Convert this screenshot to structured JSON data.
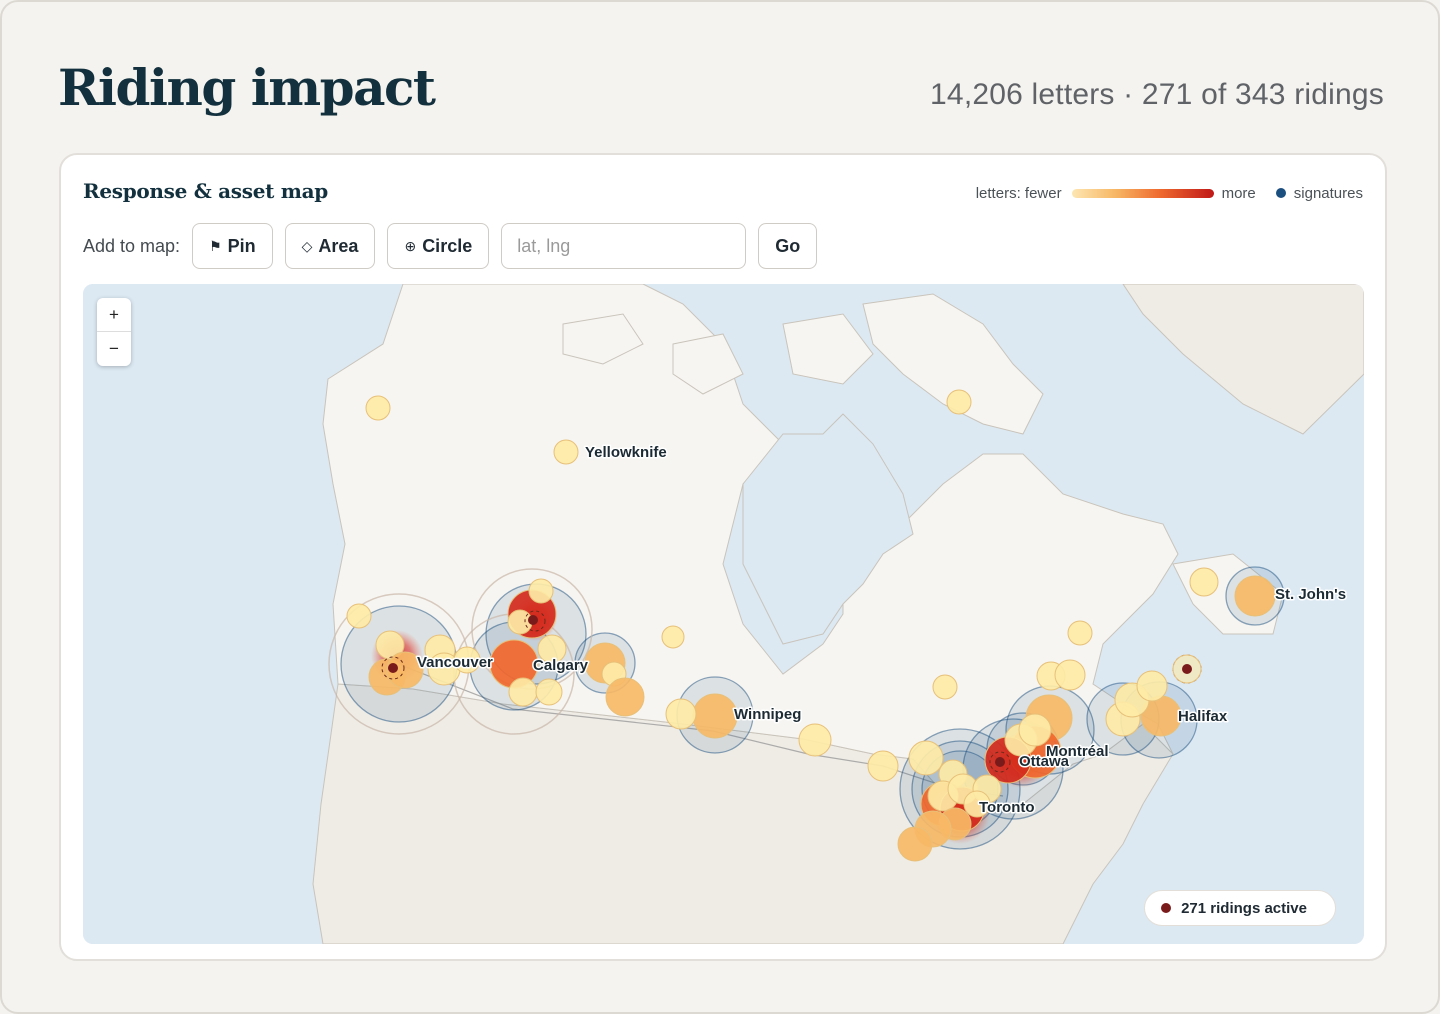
{
  "header": {
    "title": "Riding impact",
    "summary": "14,206 letters · 271 of 343 ridings"
  },
  "card": {
    "title": "Response & asset map",
    "legend": {
      "fewer_label": "letters: fewer",
      "more_label": "more",
      "signatures_label": "signatures"
    },
    "toolbar": {
      "label": "Add to map:",
      "pin_label": "Pin",
      "area_label": "Area",
      "circle_label": "Circle",
      "coord_placeholder": "lat, lng",
      "go_label": "Go"
    }
  },
  "map": {
    "zoom_in": "+",
    "zoom_out": "−",
    "status": "271 ridings active",
    "colors": {
      "water": "#dce9f3",
      "land": "#f4f2ee",
      "low": "#fdeaa6",
      "mid": "#f7b866",
      "high": "#f1672c",
      "top": "#d42a1c",
      "signatures": "#1b4f80"
    },
    "cities": [
      {
        "name": "Yellowknife"
      },
      {
        "name": "Vancouver"
      },
      {
        "name": "Calgary"
      },
      {
        "name": "Winnipeg"
      },
      {
        "name": "Toronto"
      },
      {
        "name": "Ottawa"
      },
      {
        "name": "Montréal"
      },
      {
        "name": "Halifax"
      },
      {
        "name": "St. John's"
      }
    ]
  }
}
